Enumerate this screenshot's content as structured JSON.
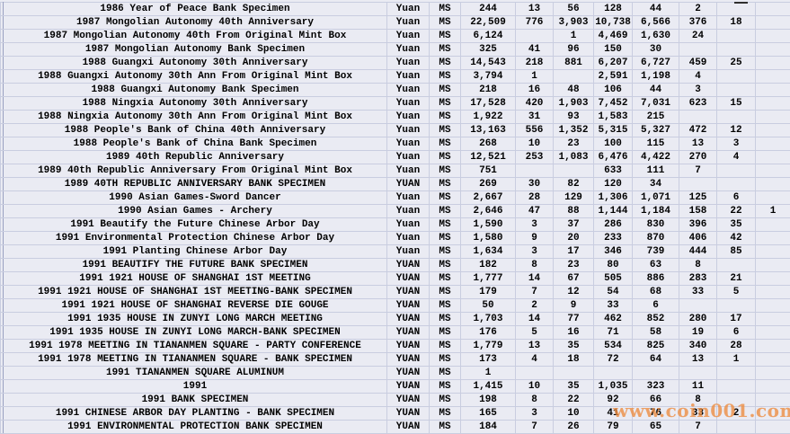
{
  "table": {
    "currency_label": "Yuan",
    "grade_label": "MS",
    "rows": [
      {
        "description": "1986 Year of Peace Bank Specimen",
        "currency": "Yuan",
        "grade": "MS",
        "values": [
          "244",
          "13",
          "56",
          "128",
          "44",
          "2",
          "",
          ""
        ]
      },
      {
        "description": "1987 Mongolian Autonomy 40th Anniversary",
        "currency": "Yuan",
        "grade": "MS",
        "values": [
          "22,509",
          "776",
          "3,903",
          "10,738",
          "6,566",
          "376",
          "18",
          ""
        ]
      },
      {
        "description": "1987 Mongolian Autonomy 40th From Original Mint Box",
        "currency": "Yuan",
        "grade": "MS",
        "values": [
          "6,124",
          "",
          "1",
          "4,469",
          "1,630",
          "24",
          "",
          ""
        ]
      },
      {
        "description": "1987 Mongolian Autonomy Bank Specimen",
        "currency": "Yuan",
        "grade": "MS",
        "values": [
          "325",
          "41",
          "96",
          "150",
          "30",
          "",
          "",
          ""
        ]
      },
      {
        "description": "1988 Guangxi Autonomy 30th Anniversary",
        "currency": "Yuan",
        "grade": "MS",
        "values": [
          "14,543",
          "218",
          "881",
          "6,207",
          "6,727",
          "459",
          "25",
          ""
        ]
      },
      {
        "description": "1988 Guangxi Autonomy 30th Ann From Original Mint Box",
        "currency": "Yuan",
        "grade": "MS",
        "values": [
          "3,794",
          "1",
          "",
          "2,591",
          "1,198",
          "4",
          "",
          ""
        ]
      },
      {
        "description": "1988 Guangxi Autonomy Bank Specimen",
        "currency": "Yuan",
        "grade": "MS",
        "values": [
          "218",
          "16",
          "48",
          "106",
          "44",
          "3",
          "",
          ""
        ]
      },
      {
        "description": "1988 Ningxia Autonomy 30th Anniversary",
        "currency": "Yuan",
        "grade": "MS",
        "values": [
          "17,528",
          "420",
          "1,903",
          "7,452",
          "7,031",
          "623",
          "15",
          ""
        ]
      },
      {
        "description": "1988 Ningxia Autonomy 30th Ann From Original Mint Box",
        "currency": "Yuan",
        "grade": "MS",
        "values": [
          "1,922",
          "31",
          "93",
          "1,583",
          "215",
          "",
          "",
          ""
        ]
      },
      {
        "description": "1988 People's Bank of China 40th Anniversary",
        "currency": "Yuan",
        "grade": "MS",
        "values": [
          "13,163",
          "556",
          "1,352",
          "5,315",
          "5,327",
          "472",
          "12",
          ""
        ]
      },
      {
        "description": "1988 People's Bank of China Bank Specimen",
        "currency": "Yuan",
        "grade": "MS",
        "values": [
          "268",
          "10",
          "23",
          "100",
          "115",
          "13",
          "3",
          ""
        ]
      },
      {
        "description": "1989 40th Republic Anniversary",
        "currency": "Yuan",
        "grade": "MS",
        "values": [
          "12,521",
          "253",
          "1,083",
          "6,476",
          "4,422",
          "270",
          "4",
          ""
        ]
      },
      {
        "description": "1989 40th Republic Anniversary From Original Mint Box",
        "currency": "Yuan",
        "grade": "MS",
        "values": [
          "751",
          "",
          "",
          "633",
          "111",
          "7",
          "",
          ""
        ]
      },
      {
        "description": "1989 40TH REPUBLIC ANNIVERSARY BANK SPECIMEN",
        "currency": "YUAN",
        "grade": "MS",
        "values": [
          "269",
          "30",
          "82",
          "120",
          "34",
          "",
          "",
          ""
        ]
      },
      {
        "description": "1990 Asian Games-Sword Dancer",
        "currency": "Yuan",
        "grade": "MS",
        "values": [
          "2,667",
          "28",
          "129",
          "1,306",
          "1,071",
          "125",
          "6",
          ""
        ]
      },
      {
        "description": "1990 Asian Games - Archery",
        "currency": "Yuan",
        "grade": "MS",
        "values": [
          "2,646",
          "47",
          "88",
          "1,144",
          "1,184",
          "158",
          "22",
          "1"
        ]
      },
      {
        "description": "1991 Beautify the Future Chinese Arbor Day",
        "currency": "Yuan",
        "grade": "MS",
        "values": [
          "1,590",
          "3",
          "37",
          "286",
          "830",
          "396",
          "35",
          ""
        ]
      },
      {
        "description": "1991 Environmental Protection Chinese Arbor Day",
        "currency": "Yuan",
        "grade": "MS",
        "values": [
          "1,580",
          "9",
          "20",
          "233",
          "870",
          "406",
          "42",
          ""
        ]
      },
      {
        "description": "1991 Planting Chinese Arbor Day",
        "currency": "Yuan",
        "grade": "MS",
        "values": [
          "1,634",
          "3",
          "17",
          "346",
          "739",
          "444",
          "85",
          ""
        ]
      },
      {
        "description": "1991 BEAUTIFY THE FUTURE BANK SPECIMEN",
        "currency": "YUAN",
        "grade": "MS",
        "values": [
          "182",
          "8",
          "23",
          "80",
          "63",
          "8",
          "",
          ""
        ]
      },
      {
        "description": "1991 1921 HOUSE OF SHANGHAI 1ST MEETING",
        "currency": "YUAN",
        "grade": "MS",
        "values": [
          "1,777",
          "14",
          "67",
          "505",
          "886",
          "283",
          "21",
          ""
        ]
      },
      {
        "description": "1991 1921 HOUSE OF SHANGHAI 1ST MEETING-BANK SPECIMEN",
        "currency": "YUAN",
        "grade": "MS",
        "values": [
          "179",
          "7",
          "12",
          "54",
          "68",
          "33",
          "5",
          ""
        ]
      },
      {
        "description": "1991 1921 HOUSE OF SHANGHAI REVERSE DIE GOUGE",
        "currency": "YUAN",
        "grade": "MS",
        "values": [
          "50",
          "2",
          "9",
          "33",
          "6",
          "",
          "",
          ""
        ]
      },
      {
        "description": "1991 1935 HOUSE IN ZUNYI LONG MARCH MEETING",
        "currency": "YUAN",
        "grade": "MS",
        "values": [
          "1,703",
          "14",
          "77",
          "462",
          "852",
          "280",
          "17",
          ""
        ]
      },
      {
        "description": "1991 1935 HOUSE IN ZUNYI LONG MARCH-BANK SPECIMEN",
        "currency": "YUAN",
        "grade": "MS",
        "values": [
          "176",
          "5",
          "16",
          "71",
          "58",
          "19",
          "6",
          ""
        ]
      },
      {
        "description": "1991 1978 MEETING IN TIANANMEN SQUARE - PARTY CONFERENCE",
        "currency": "YUAN",
        "grade": "MS",
        "values": [
          "1,779",
          "13",
          "35",
          "534",
          "825",
          "340",
          "28",
          ""
        ]
      },
      {
        "description": "1991 1978 MEETING IN TIANANMEN SQUARE - BANK SPECIMEN",
        "currency": "YUAN",
        "grade": "MS",
        "values": [
          "173",
          "4",
          "18",
          "72",
          "64",
          "13",
          "1",
          ""
        ]
      },
      {
        "description": "1991 TIANANMEN SQUARE ALUMINUM",
        "currency": "YUAN",
        "grade": "MS",
        "values": [
          "1",
          "",
          "",
          "",
          "",
          "",
          "",
          ""
        ]
      },
      {
        "description": "1991",
        "currency": "YUAN",
        "grade": "MS",
        "values": [
          "1,415",
          "10",
          "35",
          "1,035",
          "323",
          "11",
          "",
          ""
        ]
      },
      {
        "description": "1991 BANK SPECIMEN",
        "currency": "YUAN",
        "grade": "MS",
        "values": [
          "198",
          "8",
          "22",
          "92",
          "66",
          "8",
          "",
          ""
        ]
      },
      {
        "description": "1991 CHINESE ARBOR DAY PLANTING - BANK SPECIMEN",
        "currency": "YUAN",
        "grade": "MS",
        "values": [
          "165",
          "3",
          "10",
          "41",
          "76",
          "33",
          "2",
          ""
        ]
      },
      {
        "description": "1991 ENVIRONMENTAL PROTECTION BANK SPECIMEN",
        "currency": "YUAN",
        "grade": "MS",
        "values": [
          "184",
          "7",
          "26",
          "79",
          "65",
          "7",
          "",
          ""
        ]
      }
    ]
  },
  "watermark": {
    "text": "www.coin001.com",
    "color": "#ec8a3d"
  },
  "colors": {
    "background": "#eaebf3",
    "gridline": "#c9cde0",
    "left_edge_line": "#99a0c0",
    "text": "#000000"
  }
}
